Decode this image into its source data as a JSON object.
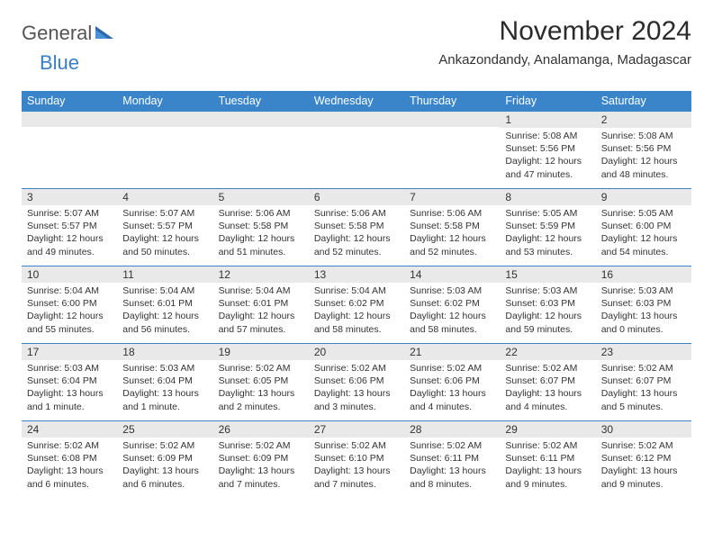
{
  "logo": {
    "general": "General",
    "blue": "Blue"
  },
  "title": "November 2024",
  "location": "Ankazondandy, Analamanga, Madagascar",
  "colors": {
    "header_bg": "#3a85c9",
    "header_text": "#ffffff",
    "daynum_bg": "#e9e9e9",
    "border": "#3a85c9",
    "logo_blue": "#3a7fc4",
    "text": "#333333",
    "background": "#ffffff"
  },
  "typography": {
    "title_fontsize": 30,
    "location_fontsize": 15,
    "dayheader_fontsize": 12.5,
    "daynum_fontsize": 12,
    "body_fontsize": 10.5,
    "font_family": "Arial"
  },
  "day_headers": [
    "Sunday",
    "Monday",
    "Tuesday",
    "Wednesday",
    "Thursday",
    "Friday",
    "Saturday"
  ],
  "weeks": [
    [
      {
        "n": "",
        "sr": "",
        "ss": "",
        "dl": ""
      },
      {
        "n": "",
        "sr": "",
        "ss": "",
        "dl": ""
      },
      {
        "n": "",
        "sr": "",
        "ss": "",
        "dl": ""
      },
      {
        "n": "",
        "sr": "",
        "ss": "",
        "dl": ""
      },
      {
        "n": "",
        "sr": "",
        "ss": "",
        "dl": ""
      },
      {
        "n": "1",
        "sr": "Sunrise: 5:08 AM",
        "ss": "Sunset: 5:56 PM",
        "dl": "Daylight: 12 hours and 47 minutes."
      },
      {
        "n": "2",
        "sr": "Sunrise: 5:08 AM",
        "ss": "Sunset: 5:56 PM",
        "dl": "Daylight: 12 hours and 48 minutes."
      }
    ],
    [
      {
        "n": "3",
        "sr": "Sunrise: 5:07 AM",
        "ss": "Sunset: 5:57 PM",
        "dl": "Daylight: 12 hours and 49 minutes."
      },
      {
        "n": "4",
        "sr": "Sunrise: 5:07 AM",
        "ss": "Sunset: 5:57 PM",
        "dl": "Daylight: 12 hours and 50 minutes."
      },
      {
        "n": "5",
        "sr": "Sunrise: 5:06 AM",
        "ss": "Sunset: 5:58 PM",
        "dl": "Daylight: 12 hours and 51 minutes."
      },
      {
        "n": "6",
        "sr": "Sunrise: 5:06 AM",
        "ss": "Sunset: 5:58 PM",
        "dl": "Daylight: 12 hours and 52 minutes."
      },
      {
        "n": "7",
        "sr": "Sunrise: 5:06 AM",
        "ss": "Sunset: 5:58 PM",
        "dl": "Daylight: 12 hours and 52 minutes."
      },
      {
        "n": "8",
        "sr": "Sunrise: 5:05 AM",
        "ss": "Sunset: 5:59 PM",
        "dl": "Daylight: 12 hours and 53 minutes."
      },
      {
        "n": "9",
        "sr": "Sunrise: 5:05 AM",
        "ss": "Sunset: 6:00 PM",
        "dl": "Daylight: 12 hours and 54 minutes."
      }
    ],
    [
      {
        "n": "10",
        "sr": "Sunrise: 5:04 AM",
        "ss": "Sunset: 6:00 PM",
        "dl": "Daylight: 12 hours and 55 minutes."
      },
      {
        "n": "11",
        "sr": "Sunrise: 5:04 AM",
        "ss": "Sunset: 6:01 PM",
        "dl": "Daylight: 12 hours and 56 minutes."
      },
      {
        "n": "12",
        "sr": "Sunrise: 5:04 AM",
        "ss": "Sunset: 6:01 PM",
        "dl": "Daylight: 12 hours and 57 minutes."
      },
      {
        "n": "13",
        "sr": "Sunrise: 5:04 AM",
        "ss": "Sunset: 6:02 PM",
        "dl": "Daylight: 12 hours and 58 minutes."
      },
      {
        "n": "14",
        "sr": "Sunrise: 5:03 AM",
        "ss": "Sunset: 6:02 PM",
        "dl": "Daylight: 12 hours and 58 minutes."
      },
      {
        "n": "15",
        "sr": "Sunrise: 5:03 AM",
        "ss": "Sunset: 6:03 PM",
        "dl": "Daylight: 12 hours and 59 minutes."
      },
      {
        "n": "16",
        "sr": "Sunrise: 5:03 AM",
        "ss": "Sunset: 6:03 PM",
        "dl": "Daylight: 13 hours and 0 minutes."
      }
    ],
    [
      {
        "n": "17",
        "sr": "Sunrise: 5:03 AM",
        "ss": "Sunset: 6:04 PM",
        "dl": "Daylight: 13 hours and 1 minute."
      },
      {
        "n": "18",
        "sr": "Sunrise: 5:03 AM",
        "ss": "Sunset: 6:04 PM",
        "dl": "Daylight: 13 hours and 1 minute."
      },
      {
        "n": "19",
        "sr": "Sunrise: 5:02 AM",
        "ss": "Sunset: 6:05 PM",
        "dl": "Daylight: 13 hours and 2 minutes."
      },
      {
        "n": "20",
        "sr": "Sunrise: 5:02 AM",
        "ss": "Sunset: 6:06 PM",
        "dl": "Daylight: 13 hours and 3 minutes."
      },
      {
        "n": "21",
        "sr": "Sunrise: 5:02 AM",
        "ss": "Sunset: 6:06 PM",
        "dl": "Daylight: 13 hours and 4 minutes."
      },
      {
        "n": "22",
        "sr": "Sunrise: 5:02 AM",
        "ss": "Sunset: 6:07 PM",
        "dl": "Daylight: 13 hours and 4 minutes."
      },
      {
        "n": "23",
        "sr": "Sunrise: 5:02 AM",
        "ss": "Sunset: 6:07 PM",
        "dl": "Daylight: 13 hours and 5 minutes."
      }
    ],
    [
      {
        "n": "24",
        "sr": "Sunrise: 5:02 AM",
        "ss": "Sunset: 6:08 PM",
        "dl": "Daylight: 13 hours and 6 minutes."
      },
      {
        "n": "25",
        "sr": "Sunrise: 5:02 AM",
        "ss": "Sunset: 6:09 PM",
        "dl": "Daylight: 13 hours and 6 minutes."
      },
      {
        "n": "26",
        "sr": "Sunrise: 5:02 AM",
        "ss": "Sunset: 6:09 PM",
        "dl": "Daylight: 13 hours and 7 minutes."
      },
      {
        "n": "27",
        "sr": "Sunrise: 5:02 AM",
        "ss": "Sunset: 6:10 PM",
        "dl": "Daylight: 13 hours and 7 minutes."
      },
      {
        "n": "28",
        "sr": "Sunrise: 5:02 AM",
        "ss": "Sunset: 6:11 PM",
        "dl": "Daylight: 13 hours and 8 minutes."
      },
      {
        "n": "29",
        "sr": "Sunrise: 5:02 AM",
        "ss": "Sunset: 6:11 PM",
        "dl": "Daylight: 13 hours and 9 minutes."
      },
      {
        "n": "30",
        "sr": "Sunrise: 5:02 AM",
        "ss": "Sunset: 6:12 PM",
        "dl": "Daylight: 13 hours and 9 minutes."
      }
    ]
  ]
}
